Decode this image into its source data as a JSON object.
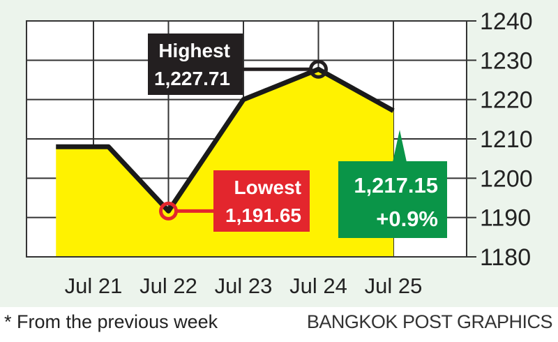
{
  "chart_data": {
    "type": "area",
    "categories": [
      "Jul 21",
      "Jul 22",
      "Jul 23",
      "Jul 24",
      "Jul 25"
    ],
    "x_points": [
      0,
      1,
      2,
      3,
      4
    ],
    "series": [
      {
        "values": [
          1208,
          1208,
          1191.65,
          1220,
          1227.71,
          1217.15
        ],
        "x": [
          -0.5,
          0.2,
          1.0,
          2.0,
          3.0,
          4.0
        ]
      }
    ],
    "ylim": [
      1180,
      1240
    ],
    "yticks": [
      1180,
      1190,
      1200,
      1210,
      1220,
      1230,
      1240
    ],
    "ytick_labels": [
      "1180",
      "1190",
      "1200",
      "1210",
      "1220",
      "1230",
      "1240"
    ],
    "grid": true,
    "annotations": {
      "highest": {
        "label": "Highest",
        "value": "1,227.71",
        "x": 3.0,
        "y": 1227.71
      },
      "lowest": {
        "label": "Lowest",
        "value": "1,191.65",
        "x": 1.0,
        "y": 1191.65
      },
      "close": {
        "value": "1,217.15",
        "change": "+0.9%",
        "x": 4.0,
        "y": 1217.15
      }
    },
    "colors": {
      "fill": "#fff200",
      "line": "#1a1a1a",
      "grid": "#333333",
      "highest_box": "#231f20",
      "lowest_box": "#e3262d",
      "close_box": "#0a9548",
      "background": "#ecf4ec"
    }
  },
  "footer": {
    "footnote": "* From the previous week",
    "credit": "BANGKOK POST GRAPHICS"
  }
}
